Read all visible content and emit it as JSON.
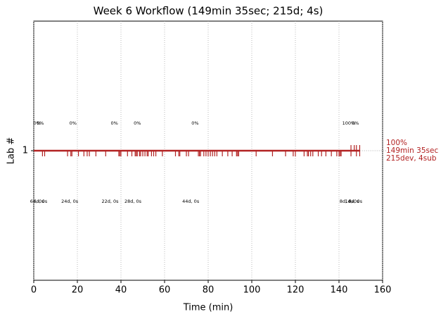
{
  "chart_data": {
    "type": "event",
    "title": "Week 6 Workflow (149min 35sec; 215d; 4s)",
    "xlabel": "Time (min)",
    "ylabel": "Lab #",
    "xlim": [
      0,
      160
    ],
    "xticks": [
      0,
      20,
      40,
      60,
      80,
      100,
      120,
      140,
      160
    ],
    "ylim": [
      0,
      2
    ],
    "yticks": [
      1
    ],
    "grid": true,
    "color": "#b22222",
    "span": [
      0,
      149.583
    ],
    "series": [
      {
        "color": "#b22222",
        "side": "below",
        "values": [
          4,
          5,
          15.5,
          17,
          17.5,
          20.5,
          23,
          24.5,
          25.5,
          28.5,
          33,
          39,
          39.5,
          40,
          43,
          45,
          46.5,
          47,
          47.5,
          48.5,
          49,
          50,
          51,
          52,
          52.5,
          54,
          55,
          56,
          59,
          65,
          66.5,
          67,
          70,
          71,
          75.5,
          76,
          76.5,
          78,
          79,
          80,
          81,
          82,
          83,
          84,
          86.5,
          89,
          91,
          93,
          93.5,
          94,
          102,
          109.5,
          115.5,
          119,
          120,
          124,
          125.5,
          126,
          127,
          128,
          130.5,
          132,
          134,
          136.5,
          139,
          140,
          140.5,
          141,
          145.5,
          148,
          149.5
        ]
      },
      {
        "color": "#b22222",
        "side": "above",
        "values": [
          145.5,
          147,
          148,
          149.5
        ]
      }
    ],
    "annotations_above": [
      {
        "x": 1.5,
        "text": "0%"
      },
      {
        "x": 3,
        "text": "0%"
      },
      {
        "x": 18,
        "text": "0%"
      },
      {
        "x": 37,
        "text": "0%"
      },
      {
        "x": 47.5,
        "text": "0%"
      },
      {
        "x": 74,
        "text": "0%"
      },
      {
        "x": 144.5,
        "text": "100%"
      },
      {
        "x": 147.5,
        "text": "0%"
      }
    ],
    "annotations_below": [
      {
        "x": 1.5,
        "text": "6d, 0s"
      },
      {
        "x": 3,
        "text": "4d, 0s"
      },
      {
        "x": 16.5,
        "text": "24d, 0s"
      },
      {
        "x": 35,
        "text": "22d, 0s"
      },
      {
        "x": 45.5,
        "text": "28d, 0s"
      },
      {
        "x": 72,
        "text": "44d, 0s"
      },
      {
        "x": 143.5,
        "text": "8d, 0s"
      },
      {
        "x": 146,
        "text": "1d, 0s"
      },
      {
        "x": 147.5,
        "text": "4d, 0s"
      }
    ],
    "summary": [
      "100%",
      "149min 35sec",
      "215dev, 4sub"
    ]
  }
}
